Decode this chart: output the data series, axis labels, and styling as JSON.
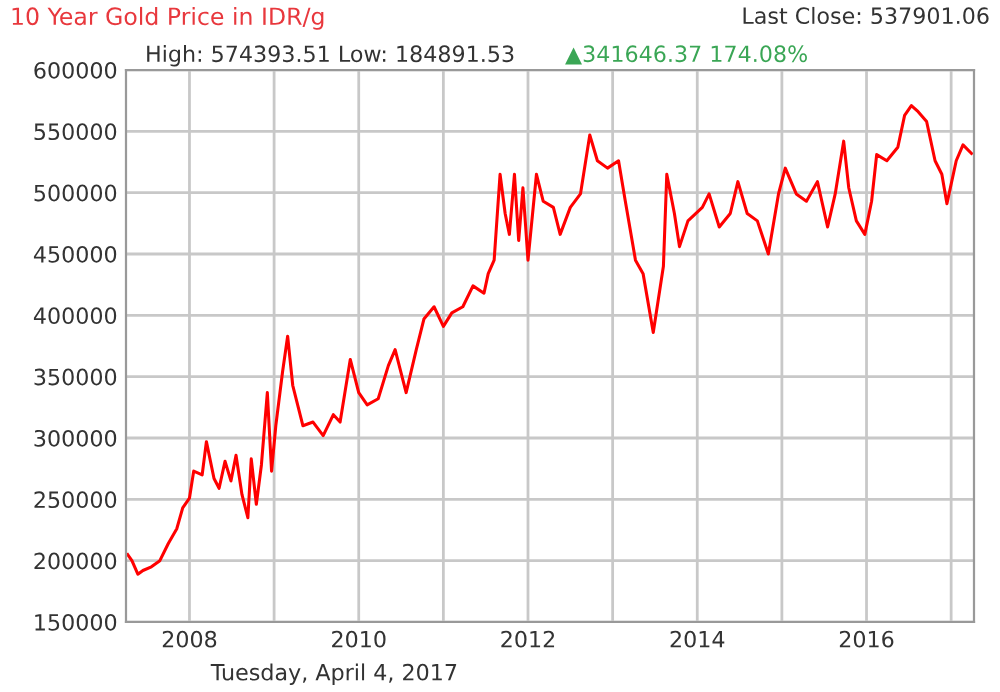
{
  "chart_data": {
    "type": "line",
    "title": "10 Year Gold Price in IDR/g",
    "subtitle": "High: 574393.51 Low: 184891.53",
    "annotations": [
      "Last Close: 537901.06",
      "▲341646.37 174.08%"
    ],
    "xlabel": "Tuesday, April 4, 2017",
    "series": [
      {
        "color": "#ff0000",
        "x": [
          2007.27,
          2007.32,
          2007.39,
          2007.45,
          2007.55,
          2007.65,
          2007.75,
          2007.85,
          2007.92,
          2008.0,
          2008.05,
          2008.15,
          2008.2,
          2008.29,
          2008.35,
          2008.42,
          2008.49,
          2008.55,
          2008.62,
          2008.69,
          2008.73,
          2008.79,
          2008.85,
          2008.92,
          2008.97,
          2009.02,
          2009.1,
          2009.16,
          2009.22,
          2009.34,
          2009.46,
          2009.58,
          2009.7,
          2009.78,
          2009.9,
          2010.0,
          2010.1,
          2010.23,
          2010.35,
          2010.43,
          2010.56,
          2010.68,
          2010.77,
          2010.89,
          2011.0,
          2011.1,
          2011.23,
          2011.35,
          2011.48,
          2011.53,
          2011.6,
          2011.67,
          2011.73,
          2011.78,
          2011.84,
          2011.89,
          2011.94,
          2012.0,
          2012.1,
          2012.18,
          2012.3,
          2012.38,
          2012.5,
          2012.62,
          2012.73,
          2012.82,
          2012.94,
          2013.07,
          2013.15,
          2013.27,
          2013.36,
          2013.48,
          2013.6,
          2013.64,
          2013.73,
          2013.79,
          2013.89,
          2014.06,
          2014.14,
          2014.26,
          2014.39,
          2014.48,
          2014.59,
          2014.71,
          2014.84,
          2014.96,
          2015.04,
          2015.17,
          2015.29,
          2015.42,
          2015.54,
          2015.63,
          2015.73,
          2015.79,
          2015.88,
          2015.98,
          2016.06,
          2016.12,
          2016.24,
          2016.37,
          2016.45,
          2016.53,
          2016.61,
          2016.71,
          2016.81,
          2016.89,
          2016.95,
          2017.06,
          2017.14,
          2017.24
        ],
        "values": [
          205000,
          200000,
          189000,
          192000,
          195000,
          200000,
          214000,
          226000,
          243000,
          251000,
          273000,
          270000,
          297000,
          267000,
          259000,
          281000,
          265000,
          286000,
          254000,
          235000,
          283000,
          246000,
          278000,
          337000,
          273000,
          310000,
          354000,
          383000,
          343000,
          310000,
          313000,
          302000,
          319000,
          313000,
          364000,
          337000,
          327000,
          332000,
          359000,
          372000,
          337000,
          372000,
          397000,
          407000,
          391000,
          402000,
          407000,
          424000,
          418000,
          434000,
          445000,
          515000,
          483000,
          466000,
          515000,
          461000,
          504000,
          445000,
          515000,
          493000,
          488000,
          466000,
          488000,
          499000,
          547000,
          526000,
          520000,
          526000,
          493000,
          445000,
          434000,
          386000,
          440000,
          515000,
          483000,
          456000,
          477000,
          488000,
          499000,
          472000,
          483000,
          509000,
          483000,
          477000,
          450000,
          499000,
          520000,
          499000,
          493000,
          509000,
          472000,
          499000,
          542000,
          504000,
          477000,
          466000,
          493000,
          531000,
          526000,
          537000,
          563000,
          571000,
          566000,
          558000,
          526000,
          515000,
          491000,
          526000,
          539000,
          532000
        ]
      }
    ],
    "xlim": [
      2007.25,
      2017.27
    ],
    "xticks": [
      {
        "value": 2008,
        "label": "2008"
      },
      {
        "value": 2009,
        "label": null
      },
      {
        "value": 2010,
        "label": "2010"
      },
      {
        "value": 2011,
        "label": null
      },
      {
        "value": 2012,
        "label": "2012"
      },
      {
        "value": 2013,
        "label": null
      },
      {
        "value": 2014,
        "label": "2014"
      },
      {
        "value": 2015,
        "label": null
      },
      {
        "value": 2016,
        "label": "2016"
      },
      {
        "value": 2017,
        "label": null
      }
    ],
    "ylim": [
      150000,
      600000
    ],
    "yticks": [
      150000,
      200000,
      250000,
      300000,
      350000,
      400000,
      450000,
      500000,
      550000,
      600000
    ],
    "grid": true,
    "legend": false,
    "marker": "none",
    "line_style": "solid"
  }
}
